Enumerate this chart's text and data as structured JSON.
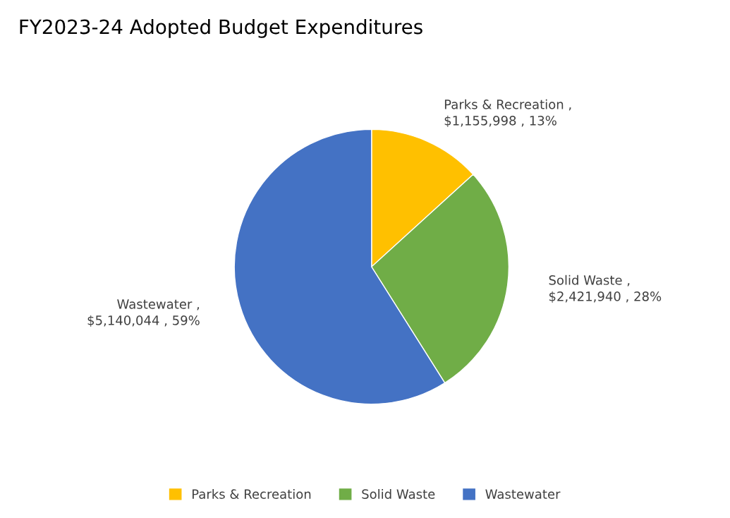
{
  "chart_data": {
    "type": "pie",
    "title": "FY2023-24 Adopted Budget Expenditures",
    "categories": [
      "Parks & Recreation",
      "Solid Waste",
      "Wastewater"
    ],
    "values": [
      1155998,
      2421940,
      5140044
    ],
    "colors": [
      "#ffc000",
      "#70ad47",
      "#4472c4"
    ],
    "value_labels": [
      "Parks & Recreation ,\n$1,155,998 , 13%",
      "Solid Waste ,\n$2,421,940 , 28%",
      "Wastewater ,\n$5,140,044 , 59%"
    ],
    "legend": "bottom"
  }
}
